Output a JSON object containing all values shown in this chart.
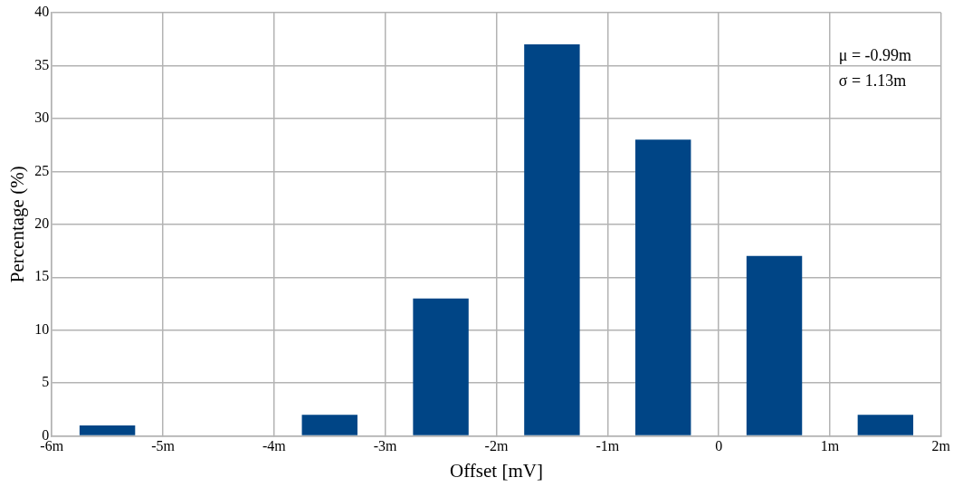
{
  "chart_data": {
    "type": "bar",
    "xlabel": "Offset [mV]",
    "ylabel": "Percentage (%)",
    "x": [
      -5.5,
      -4.5,
      -3.5,
      -2.5,
      -1.5,
      -0.5,
      0.5,
      1.5
    ],
    "values": [
      1,
      0,
      2,
      13,
      37,
      28,
      17,
      2
    ],
    "color": "#004586",
    "xlim": [
      -6,
      2
    ],
    "xticks": [
      {
        "value": -6,
        "label": "-6m"
      },
      {
        "value": -5,
        "label": "-5m"
      },
      {
        "value": -4,
        "label": "-4m"
      },
      {
        "value": -3,
        "label": "-3m"
      },
      {
        "value": -2,
        "label": "-2m"
      },
      {
        "value": -1,
        "label": "-1m"
      },
      0,
      {
        "value": 1,
        "label": "1m"
      },
      {
        "value": 2,
        "label": "2m"
      }
    ],
    "ylim": [
      0,
      40
    ],
    "yticks": [
      0,
      5,
      10,
      15,
      20,
      25,
      30,
      35,
      40
    ],
    "grid": true,
    "legend": false,
    "annotations": [
      "μ = -0.99m",
      "σ = 1.13m"
    ]
  }
}
